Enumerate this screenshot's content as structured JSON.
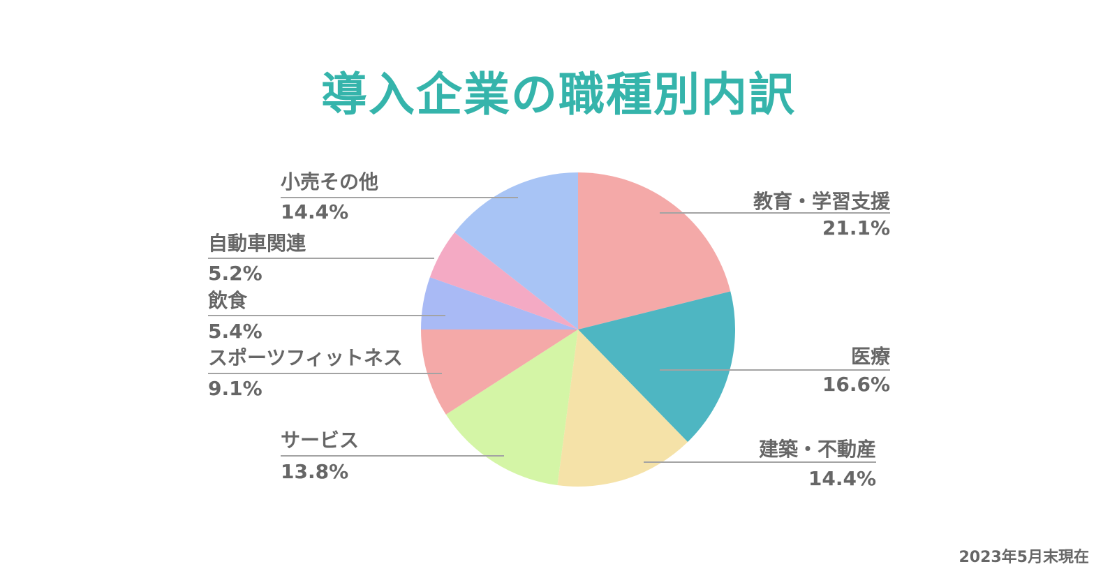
{
  "colors": {
    "title": "#35b4ab",
    "text": "#666666",
    "leader_line": "#a3a3a3"
  },
  "chart_data": {
    "type": "pie",
    "title": "導入企業の職種別内訳",
    "note": "2023年5月末現在",
    "slices": [
      {
        "label": "教育・学習支援",
        "value": 21.1,
        "value_label": "21.1%",
        "color": "#f4a9a8",
        "label_side": "right"
      },
      {
        "label": "医療",
        "value": 16.6,
        "value_label": "16.6%",
        "color": "#4eb6c2",
        "label_side": "right"
      },
      {
        "label": "建築・不動産",
        "value": 14.4,
        "value_label": "14.4%",
        "color": "#f5e2a8",
        "label_side": "right"
      },
      {
        "label": "サービス",
        "value": 13.8,
        "value_label": "13.8%",
        "color": "#d4f5a6",
        "label_side": "left"
      },
      {
        "label": "スポーツフィットネス",
        "value": 9.1,
        "value_label": "9.1%",
        "color": "#f4a9a8",
        "label_side": "left"
      },
      {
        "label": "飲食",
        "value": 5.4,
        "value_label": "5.4%",
        "color": "#a9baf5",
        "label_side": "left"
      },
      {
        "label": "自動車関連",
        "value": 5.2,
        "value_label": "5.2%",
        "color": "#f4aac4",
        "label_side": "left"
      },
      {
        "label": "小売その他",
        "value": 14.4,
        "value_label": "14.4%",
        "color": "#a8c4f5",
        "label_side": "left"
      }
    ]
  }
}
